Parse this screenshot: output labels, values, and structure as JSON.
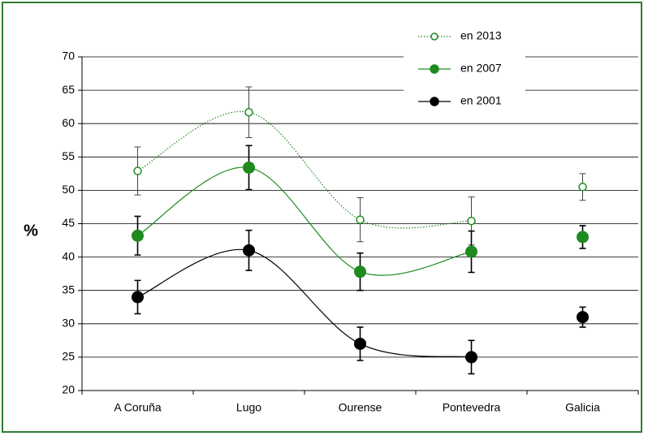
{
  "chart_data": {
    "type": "line",
    "y_label": "%",
    "categories": [
      "A Coruña",
      "Lugo",
      "Ourense",
      "Pontevedra",
      "Galicia"
    ],
    "ylim": [
      20,
      70
    ],
    "yticks": [
      20,
      25,
      30,
      35,
      40,
      45,
      50,
      55,
      60,
      65,
      70
    ],
    "grid": true,
    "smooth": true,
    "connect_last_category": false,
    "legend": "top-right",
    "series": [
      {
        "name": "en 2013",
        "color": "#1f8a1f",
        "marker": "open",
        "line_style": "dotted",
        "values": [
          52.9,
          61.7,
          45.6,
          45.4,
          50.5
        ],
        "errors": [
          3.6,
          3.8,
          3.3,
          3.6,
          2.0
        ]
      },
      {
        "name": "en 2007",
        "color": "#1f8a1f",
        "marker": "filled",
        "line_style": "solid",
        "values": [
          43.2,
          53.4,
          37.8,
          40.8,
          43.0
        ],
        "errors": [
          2.9,
          3.3,
          2.8,
          3.1,
          1.7
        ]
      },
      {
        "name": "en 2001",
        "color": "#000000",
        "marker": "filled",
        "line_style": "solid",
        "values": [
          34,
          41,
          27,
          25,
          31
        ],
        "errors": [
          2.5,
          3.0,
          2.5,
          2.5,
          1.5
        ]
      }
    ]
  }
}
